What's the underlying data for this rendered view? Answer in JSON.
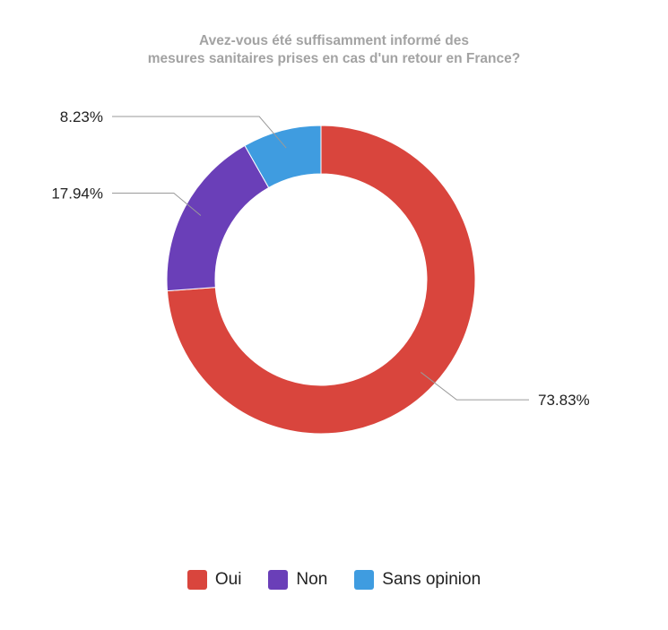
{
  "chart_data": {
    "type": "pie",
    "variant": "donut",
    "title_lines": [
      "Avez-vous été suffisamment informé des",
      "mesures sanitaires prises en cas d'un retour en France?"
    ],
    "categories": [
      "Oui",
      "Non",
      "Sans opinion"
    ],
    "values": [
      73.83,
      17.94,
      8.23
    ],
    "labels": [
      "73.83%",
      "17.94%",
      "8.23%"
    ],
    "colors": [
      "#d9453d",
      "#6a3fb8",
      "#3f9ce0"
    ],
    "legend_position": "bottom",
    "start": "12 o'clock, clockwise"
  }
}
